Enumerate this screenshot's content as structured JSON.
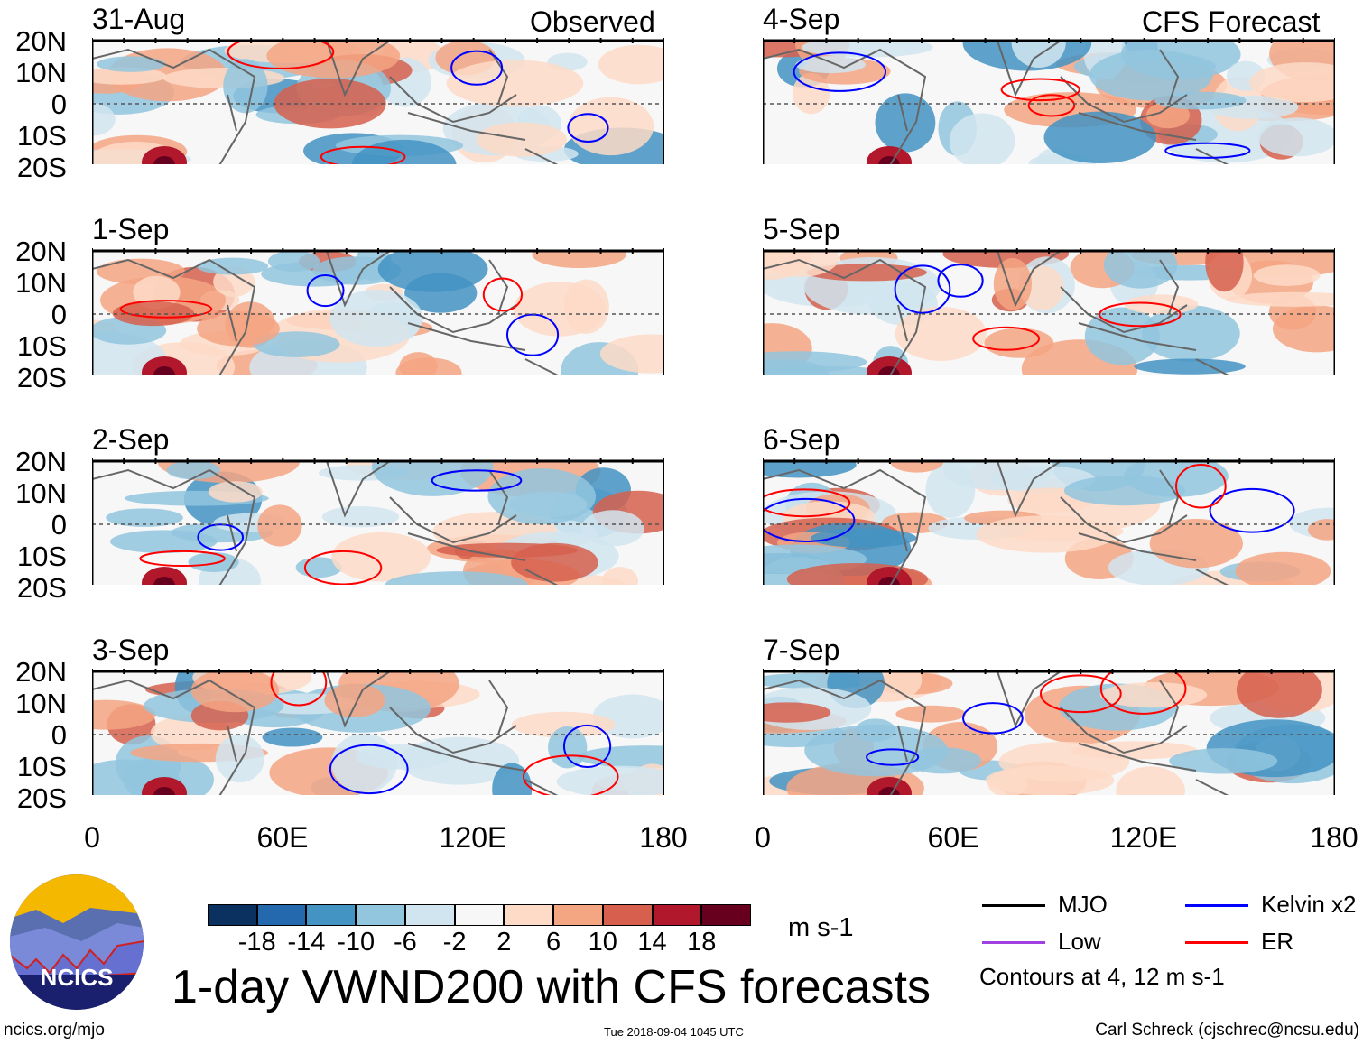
{
  "title": "1-day VWND200 with CFS forecasts",
  "headers": {
    "left": "Observed",
    "right": "CFS Forecast"
  },
  "lat_labels": [
    "20N",
    "10N",
    "0",
    "10S",
    "20S"
  ],
  "lon_labels": [
    "0",
    "60E",
    "120E",
    "180"
  ],
  "panels_left": [
    {
      "date": "31-Aug"
    },
    {
      "date": "1-Sep"
    },
    {
      "date": "2-Sep"
    },
    {
      "date": "3-Sep"
    }
  ],
  "panels_right": [
    {
      "date": "4-Sep"
    },
    {
      "date": "5-Sep"
    },
    {
      "date": "6-Sep"
    },
    {
      "date": "7-Sep"
    }
  ],
  "colorbar": {
    "labels": [
      "-18",
      "-14",
      "-10",
      "-6",
      "-2",
      "2",
      "6",
      "10",
      "14",
      "18"
    ],
    "colors": [
      "#0a3160",
      "#2468ad",
      "#4393c3",
      "#92c5de",
      "#d1e5f0",
      "#f7f7f7",
      "#fddbc7",
      "#f4a582",
      "#d6604d",
      "#b2182b",
      "#67001f"
    ],
    "units": "m s-1"
  },
  "legend": {
    "items": [
      {
        "label": "MJO",
        "color": "#000000"
      },
      {
        "label": "Kelvin x2",
        "color": "#0000ff"
      },
      {
        "label": "Low",
        "color": "#a040e0"
      },
      {
        "label": "ER",
        "color": "#ff0000"
      }
    ],
    "contours_note": "Contours at 4, 12 m s-1"
  },
  "logo": {
    "text": "NCICS"
  },
  "footer": {
    "url": "ncics.org/mjo",
    "timestamp": "Tue 2018-09-04 1045 UTC",
    "author": "Carl Schreck (cjschrec@ncsu.edu)"
  }
}
